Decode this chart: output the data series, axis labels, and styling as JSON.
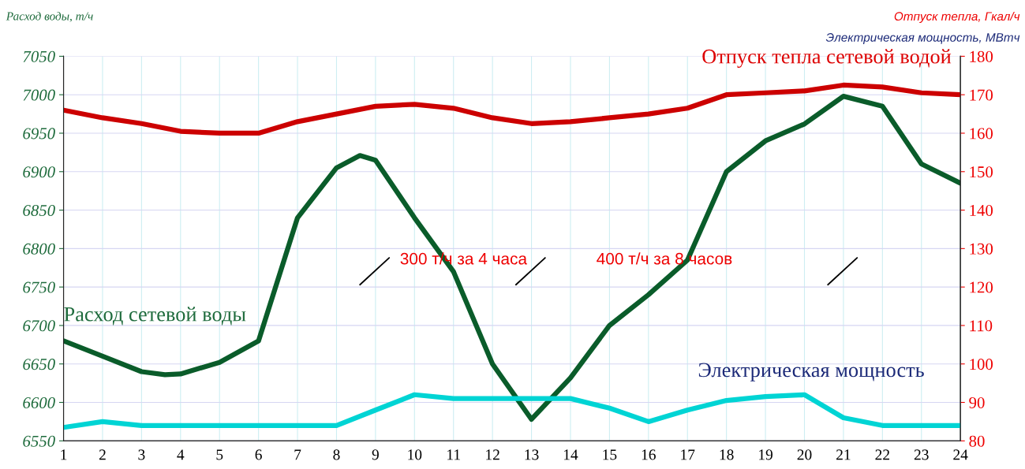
{
  "chart_data": {
    "type": "line",
    "ylabel": "Расход воды, т/ч",
    "y2label": "Отпуск тепла, Гкал/ч",
    "annotations": [
      "Электрическая мощность, МВтч",
      "300 т/ч за 4 часа",
      "400 т/ч за 8 часов"
    ],
    "x": [
      1,
      2,
      3,
      4,
      5,
      6,
      7,
      8,
      9,
      10,
      11,
      12,
      13,
      14,
      15,
      16,
      17,
      18,
      19,
      20,
      21,
      22,
      23,
      24
    ],
    "xlim": [
      1,
      24
    ],
    "xticks": [
      1,
      2,
      3,
      4,
      5,
      6,
      7,
      8,
      9,
      10,
      11,
      12,
      13,
      14,
      15,
      16,
      17,
      18,
      19,
      20,
      21,
      22,
      23,
      24
    ],
    "ylim": [
      6550,
      7050
    ],
    "yticks": [
      6550,
      6600,
      6650,
      6700,
      6750,
      6800,
      6850,
      6900,
      6950,
      7000,
      7050
    ],
    "y2lim": [
      80,
      180
    ],
    "y2ticks": [
      80,
      90,
      100,
      110,
      120,
      130,
      140,
      150,
      160,
      170,
      180
    ],
    "grid": true,
    "marker": "none",
    "line_style": "solid",
    "series": [
      {
        "name": "Отпуск тепла сетевой водой",
        "color": "#cc0000",
        "axis": "y2",
        "values": [
          166,
          164,
          162.5,
          160.5,
          160,
          160,
          163,
          165,
          167,
          167.5,
          166.5,
          164,
          162.5,
          163,
          164,
          165,
          166.5,
          170,
          170.5,
          171,
          172.5,
          172,
          170.5,
          170
        ]
      },
      {
        "name": "Расход сетевой воды",
        "color": "#0a5c2a",
        "x": [
          1,
          2,
          3,
          3.6,
          4,
          5,
          6,
          7,
          8,
          8.6,
          9,
          10,
          11,
          12,
          13,
          14,
          15,
          16,
          17,
          18,
          19,
          20,
          21,
          22,
          23,
          24
        ],
        "values": [
          6680,
          6660,
          6640,
          6636,
          6637,
          6652,
          6680,
          6840,
          6905,
          6921,
          6915,
          6840,
          6770,
          6650,
          6578,
          6632,
          6700,
          6740,
          6785,
          6900,
          6940,
          6962,
          6998,
          6985,
          6910,
          6885
        ]
      },
      {
        "name": "Электрическая мощность",
        "color": "#00d4d4",
        "axis": "y2",
        "values": [
          83.5,
          85,
          84,
          84,
          84,
          84,
          84,
          84,
          88,
          92,
          91,
          91,
          91,
          91,
          88.5,
          85,
          88,
          90.5,
          91.5,
          92,
          86,
          84,
          84,
          84
        ]
      }
    ]
  }
}
